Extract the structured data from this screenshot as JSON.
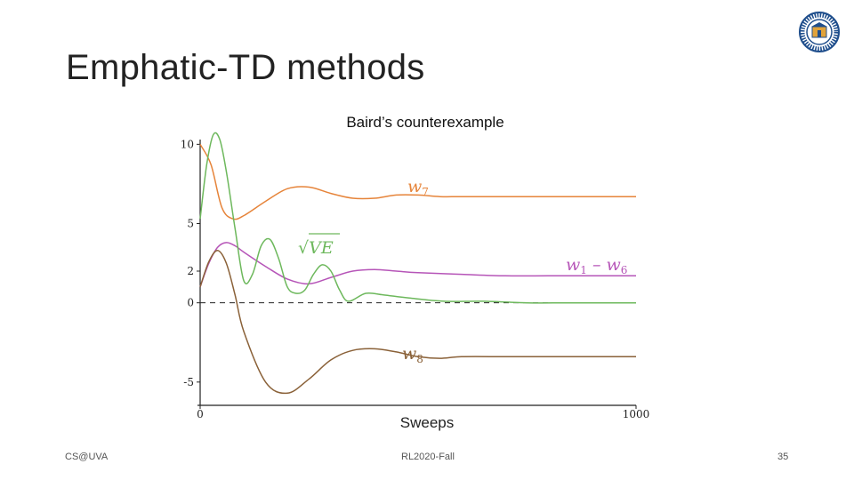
{
  "slide": {
    "title": "Emphatic-TD methods",
    "footer_left": "CS@UVA",
    "footer_center": "RL2020-Fall",
    "footer_right": "35",
    "logo_icon": "university-seal-icon"
  },
  "chart_data": {
    "type": "line",
    "title": "Baird’s counterexample",
    "xlabel": "Sweeps",
    "ylabel": "",
    "xlim": [
      0,
      1000
    ],
    "ylim": [
      -6.3,
      10.3
    ],
    "x_ticks": [
      "0",
      "1000"
    ],
    "y_ticks": [
      "10",
      "5",
      "2",
      "0",
      "-5"
    ],
    "y_tick_values": [
      10,
      5,
      2,
      0,
      -5
    ],
    "zero_line": "dashed",
    "grid": false,
    "legend": "none",
    "series": [
      {
        "label": "w",
        "subscript": "7",
        "color": "#e6843a",
        "x": [
          0,
          25,
          50,
          75,
          100,
          150,
          200,
          250,
          300,
          350,
          400,
          450,
          500,
          550,
          600,
          700,
          800,
          900,
          1000
        ],
        "y": [
          10.0,
          8.7,
          6.0,
          5.3,
          5.5,
          6.4,
          7.2,
          7.3,
          6.9,
          6.6,
          6.6,
          6.8,
          6.8,
          6.7,
          6.7,
          6.7,
          6.7,
          6.7,
          6.7
        ]
      },
      {
        "label": "w",
        "subscript": "1",
        "label_suffix": " – w",
        "label_suffix_subscript": "6",
        "color": "#b655b8",
        "x": [
          0,
          20,
          40,
          60,
          80,
          100,
          150,
          200,
          250,
          300,
          350,
          400,
          450,
          500,
          600,
          700,
          800,
          900,
          1000
        ],
        "y": [
          1.0,
          2.5,
          3.5,
          3.8,
          3.6,
          3.2,
          2.3,
          1.5,
          1.2,
          1.6,
          2.0,
          2.1,
          2.0,
          1.9,
          1.8,
          1.7,
          1.7,
          1.7,
          1.7
        ]
      },
      {
        "label": "√VE",
        "color": "#6db85c",
        "x": [
          0,
          15,
          30,
          45,
          60,
          80,
          100,
          120,
          140,
          160,
          180,
          200,
          220,
          240,
          260,
          280,
          300,
          320,
          340,
          380,
          420,
          480,
          560,
          650,
          750,
          850,
          1000
        ],
        "y": [
          5.3,
          8.7,
          10.6,
          10.3,
          8.3,
          4.7,
          1.4,
          1.8,
          3.6,
          4.0,
          2.8,
          1.0,
          0.6,
          0.8,
          1.8,
          2.4,
          2.0,
          0.8,
          0.1,
          0.6,
          0.5,
          0.3,
          0.1,
          0.1,
          0.0,
          0.0,
          0.0
        ]
      },
      {
        "label": "w",
        "subscript": "8",
        "color": "#8a6138",
        "x": [
          0,
          20,
          40,
          60,
          80,
          100,
          150,
          200,
          250,
          300,
          350,
          400,
          450,
          500,
          550,
          600,
          700,
          800,
          900,
          1000
        ],
        "y": [
          1.0,
          2.6,
          3.3,
          2.5,
          0.5,
          -1.8,
          -5.0,
          -5.7,
          -4.8,
          -3.6,
          -3.0,
          -2.9,
          -3.1,
          -3.4,
          -3.5,
          -3.4,
          -3.4,
          -3.4,
          -3.4,
          -3.4
        ]
      }
    ]
  }
}
